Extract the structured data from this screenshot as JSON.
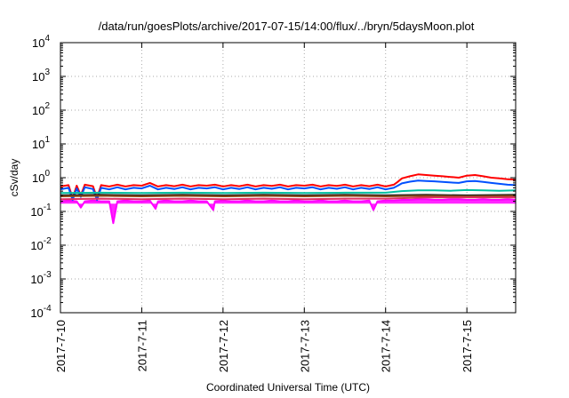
{
  "chart_data": {
    "type": "line",
    "title": "/data/run/goesPlots/archive/2017-07-15/14:00/flux/../bryn/5daysMoon.plot",
    "xlabel": "Coordinated Universal Time (UTC)",
    "ylabel": "cSv/day",
    "yscale": "log",
    "ylim": [
      0.0001,
      10000
    ],
    "xlim": [
      0,
      5.6
    ],
    "grid": true,
    "legend": "none",
    "x_ticks": [
      {
        "value": 0,
        "label": "2017-7-10"
      },
      {
        "value": 1,
        "label": "2017-7-11"
      },
      {
        "value": 2,
        "label": "2017-7-12"
      },
      {
        "value": 3,
        "label": "2017-7-13"
      },
      {
        "value": 4,
        "label": "2017-7-14"
      },
      {
        "value": 5,
        "label": "2017-7-15"
      }
    ],
    "y_ticks": [
      {
        "value": 0.0001,
        "base": "10",
        "exp": "-4"
      },
      {
        "value": 0.001,
        "base": "10",
        "exp": "-3"
      },
      {
        "value": 0.01,
        "base": "10",
        "exp": "-2"
      },
      {
        "value": 0.1,
        "base": "10",
        "exp": "-1"
      },
      {
        "value": 1,
        "base": "10",
        "exp": "0"
      },
      {
        "value": 10,
        "base": "10",
        "exp": "1"
      },
      {
        "value": 100,
        "base": "10",
        "exp": "2"
      },
      {
        "value": 1000,
        "base": "10",
        "exp": "3"
      },
      {
        "value": 10000,
        "base": "10",
        "exp": "4"
      }
    ],
    "series": [
      {
        "color": "#ff00ff",
        "fill": true,
        "x": [
          0,
          0.1,
          0.2,
          0.25,
          0.3,
          0.4,
          0.5,
          0.6,
          0.65,
          0.7,
          0.8,
          0.9,
          1.0,
          1.1,
          1.17,
          1.2,
          1.3,
          1.4,
          1.5,
          1.6,
          1.7,
          1.8,
          1.88,
          1.9,
          2.0,
          2.1,
          2.2,
          2.3,
          2.4,
          2.5,
          2.6,
          2.7,
          2.8,
          2.9,
          3.0,
          3.1,
          3.2,
          3.3,
          3.4,
          3.5,
          3.6,
          3.7,
          3.8,
          3.85,
          3.9,
          4.0,
          4.1,
          4.2,
          4.3,
          4.4,
          4.5,
          4.6,
          4.7,
          4.8,
          4.9,
          5.0,
          5.1,
          5.2,
          5.3,
          5.4,
          5.5,
          5.6
        ],
        "y": [
          0.2,
          0.21,
          0.2,
          0.13,
          0.2,
          0.21,
          0.2,
          0.2,
          0.045,
          0.2,
          0.21,
          0.2,
          0.2,
          0.21,
          0.12,
          0.2,
          0.21,
          0.2,
          0.2,
          0.21,
          0.2,
          0.2,
          0.11,
          0.2,
          0.21,
          0.2,
          0.2,
          0.21,
          0.2,
          0.2,
          0.21,
          0.2,
          0.2,
          0.21,
          0.2,
          0.2,
          0.21,
          0.2,
          0.2,
          0.21,
          0.2,
          0.2,
          0.21,
          0.11,
          0.2,
          0.21,
          0.21,
          0.22,
          0.22,
          0.23,
          0.23,
          0.22,
          0.22,
          0.23,
          0.23,
          0.22,
          0.22,
          0.23,
          0.22,
          0.22,
          0.23,
          0.22
        ]
      },
      {
        "color": "#ff0000",
        "fill": false,
        "x": [
          0,
          0.1,
          0.15,
          0.2,
          0.25,
          0.3,
          0.4,
          0.45,
          0.5,
          0.6,
          0.7,
          0.8,
          0.9,
          1.0,
          1.1,
          1.2,
          1.3,
          1.4,
          1.5,
          1.6,
          1.7,
          1.8,
          1.9,
          2.0,
          2.1,
          2.2,
          2.3,
          2.4,
          2.5,
          2.6,
          2.7,
          2.8,
          2.9,
          3.0,
          3.1,
          3.2,
          3.3,
          3.4,
          3.5,
          3.6,
          3.7,
          3.8,
          3.9,
          4.0,
          4.1,
          4.15,
          4.2,
          4.3,
          4.4,
          4.5,
          4.6,
          4.7,
          4.8,
          4.9,
          5.0,
          5.1,
          5.2,
          5.3,
          5.4,
          5.5,
          5.6
        ],
        "y": [
          0.55,
          0.6,
          0.25,
          0.58,
          0.3,
          0.62,
          0.56,
          0.25,
          0.6,
          0.55,
          0.62,
          0.55,
          0.6,
          0.58,
          0.7,
          0.55,
          0.6,
          0.56,
          0.62,
          0.55,
          0.6,
          0.58,
          0.62,
          0.55,
          0.6,
          0.56,
          0.62,
          0.55,
          0.6,
          0.57,
          0.62,
          0.55,
          0.6,
          0.58,
          0.62,
          0.55,
          0.6,
          0.57,
          0.62,
          0.55,
          0.6,
          0.56,
          0.62,
          0.55,
          0.62,
          0.75,
          0.95,
          1.1,
          1.25,
          1.2,
          1.15,
          1.1,
          1.05,
          1.0,
          1.15,
          1.2,
          1.1,
          1.0,
          0.95,
          0.9,
          0.88
        ]
      },
      {
        "color": "#0050ff",
        "fill": false,
        "x": [
          0,
          0.1,
          0.15,
          0.2,
          0.25,
          0.3,
          0.4,
          0.45,
          0.5,
          0.6,
          0.7,
          0.8,
          0.9,
          1.0,
          1.1,
          1.2,
          1.3,
          1.4,
          1.5,
          1.6,
          1.7,
          1.8,
          1.9,
          2.0,
          2.1,
          2.2,
          2.3,
          2.4,
          2.5,
          2.6,
          2.7,
          2.8,
          2.9,
          3.0,
          3.1,
          3.2,
          3.3,
          3.4,
          3.5,
          3.6,
          3.7,
          3.8,
          3.9,
          4.0,
          4.1,
          4.15,
          4.2,
          4.3,
          4.4,
          4.5,
          4.6,
          4.7,
          4.8,
          4.9,
          5.0,
          5.1,
          5.2,
          5.3,
          5.4,
          5.5,
          5.6
        ],
        "y": [
          0.45,
          0.5,
          0.22,
          0.48,
          0.27,
          0.52,
          0.46,
          0.22,
          0.5,
          0.45,
          0.52,
          0.45,
          0.5,
          0.48,
          0.58,
          0.45,
          0.5,
          0.46,
          0.52,
          0.45,
          0.5,
          0.48,
          0.52,
          0.45,
          0.5,
          0.46,
          0.52,
          0.45,
          0.5,
          0.47,
          0.52,
          0.45,
          0.5,
          0.48,
          0.52,
          0.45,
          0.5,
          0.47,
          0.52,
          0.45,
          0.5,
          0.46,
          0.52,
          0.45,
          0.5,
          0.58,
          0.68,
          0.76,
          0.82,
          0.8,
          0.78,
          0.75,
          0.72,
          0.7,
          0.78,
          0.8,
          0.75,
          0.7,
          0.66,
          0.62,
          0.6
        ]
      },
      {
        "color": "#00c0a0",
        "fill": false,
        "x": [
          0,
          0.5,
          1.0,
          1.5,
          2.0,
          2.5,
          3.0,
          3.5,
          4.0,
          4.2,
          4.4,
          4.6,
          4.8,
          5.0,
          5.2,
          5.4,
          5.6
        ],
        "y": [
          0.35,
          0.36,
          0.35,
          0.36,
          0.35,
          0.36,
          0.35,
          0.36,
          0.36,
          0.4,
          0.42,
          0.42,
          0.41,
          0.43,
          0.42,
          0.41,
          0.42
        ]
      },
      {
        "color": "#202020",
        "fill": false,
        "x": [
          0,
          0.5,
          1.0,
          1.5,
          2.0,
          2.5,
          3.0,
          3.5,
          4.0,
          4.5,
          5.0,
          5.6
        ],
        "y": [
          0.3,
          0.31,
          0.3,
          0.31,
          0.3,
          0.31,
          0.3,
          0.31,
          0.3,
          0.31,
          0.3,
          0.31
        ]
      },
      {
        "color": "#8b4513",
        "fill": false,
        "x": [
          0,
          0.5,
          1.0,
          1.5,
          2.0,
          2.5,
          3.0,
          3.5,
          4.0,
          4.5,
          5.0,
          5.6
        ],
        "y": [
          0.28,
          0.29,
          0.28,
          0.29,
          0.28,
          0.29,
          0.28,
          0.29,
          0.28,
          0.29,
          0.28,
          0.29
        ]
      },
      {
        "color": "#e03060",
        "fill": false,
        "x": [
          0,
          0.5,
          1.0,
          1.5,
          2.0,
          2.5,
          3.0,
          3.5,
          4.0,
          4.5,
          5.0,
          5.6
        ],
        "y": [
          0.23,
          0.24,
          0.23,
          0.24,
          0.23,
          0.24,
          0.23,
          0.24,
          0.24,
          0.26,
          0.26,
          0.26
        ]
      }
    ]
  }
}
